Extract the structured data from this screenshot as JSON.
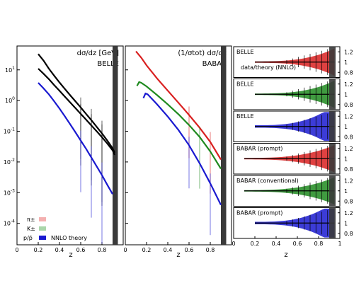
{
  "chart_data": [
    {
      "type": "line",
      "panel": "BELLE cross sections",
      "title": "dσ/dz [GeV]",
      "subtitle": "BELLE",
      "xlabel": "z",
      "ylabel": "",
      "xlim": [
        0,
        1
      ],
      "ylim": [
        2e-05,
        60
      ],
      "yscale": "log",
      "x_ticks": [
        "0",
        "0.2",
        "0.4",
        "0.6",
        "0.8"
      ],
      "y_ticks": [
        "10^-4",
        "10^-3",
        "10^-2",
        "10^-1",
        "10^0",
        "10^1"
      ],
      "legend": [
        "π±",
        "K±",
        "p/p̄",
        "NNLO theory"
      ],
      "legend_position": "bottom-left",
      "series": [
        {
          "name": "π±",
          "color": "#000000",
          "band_color": "#d94040",
          "x": [
            0.2,
            0.25,
            0.3,
            0.35,
            0.4,
            0.45,
            0.5,
            0.55,
            0.6,
            0.65,
            0.7,
            0.75,
            0.8,
            0.85,
            0.9,
            0.92
          ],
          "y": [
            33,
            20,
            11,
            6.5,
            3.9,
            2.4,
            1.5,
            0.95,
            0.6,
            0.37,
            0.23,
            0.14,
            0.085,
            0.05,
            0.028,
            0.02
          ]
        },
        {
          "name": "K±",
          "color": "#000000",
          "band_color": "#3a8a3a",
          "x": [
            0.2,
            0.25,
            0.3,
            0.35,
            0.4,
            0.45,
            0.5,
            0.55,
            0.6,
            0.65,
            0.7,
            0.75,
            0.8,
            0.85,
            0.9,
            0.92
          ],
          "y": [
            11,
            7.5,
            5.0,
            3.2,
            2.1,
            1.35,
            0.88,
            0.57,
            0.37,
            0.24,
            0.155,
            0.1,
            0.064,
            0.04,
            0.024,
            0.017
          ]
        },
        {
          "name": "p/p̄",
          "color": "#1a1ad0",
          "band_color": "#1a1ad0",
          "x": [
            0.2,
            0.25,
            0.3,
            0.35,
            0.4,
            0.45,
            0.5,
            0.55,
            0.6,
            0.65,
            0.7,
            0.75,
            0.8,
            0.85,
            0.9
          ],
          "y": [
            3.8,
            2.5,
            1.6,
            0.95,
            0.55,
            0.31,
            0.17,
            0.093,
            0.05,
            0.027,
            0.014,
            0.0072,
            0.0037,
            0.0018,
            0.0009
          ]
        }
      ]
    },
    {
      "type": "line",
      "panel": "BABAR cross sections",
      "title": "(1/σtot) dσ/dz",
      "subtitle": "BABAR",
      "xlabel": "z",
      "ylabel": "",
      "xlim": [
        0,
        1
      ],
      "ylim": [
        2e-05,
        60
      ],
      "yscale": "log",
      "x_ticks": [
        "0",
        "0.2",
        "0.4",
        "0.6",
        "0.8"
      ],
      "series": [
        {
          "name": "π±",
          "color": "#d92020",
          "x": [
            0.1,
            0.15,
            0.2,
            0.3,
            0.4,
            0.5,
            0.6,
            0.7,
            0.8,
            0.9
          ],
          "y": [
            40,
            25,
            14,
            5.2,
            2.1,
            0.85,
            0.34,
            0.13,
            0.045,
            0.012
          ]
        },
        {
          "name": "K±",
          "color": "#1f8a1f",
          "x": [
            0.11,
            0.13,
            0.15,
            0.2,
            0.3,
            0.4,
            0.5,
            0.6,
            0.7,
            0.8,
            0.9
          ],
          "y": [
            3.0,
            4.0,
            3.8,
            2.9,
            1.5,
            0.75,
            0.36,
            0.16,
            0.065,
            0.022,
            0.006
          ]
        },
        {
          "name": "p/p̄",
          "color": "#1a1ad0",
          "x": [
            0.17,
            0.19,
            0.21,
            0.3,
            0.4,
            0.5,
            0.6,
            0.7,
            0.8,
            0.9
          ],
          "y": [
            1.2,
            1.7,
            1.6,
            0.75,
            0.3,
            0.11,
            0.035,
            0.009,
            0.002,
            0.0004
          ]
        }
      ]
    },
    {
      "type": "line",
      "panel": "data/theory ratios",
      "title": "",
      "xlabel": "z",
      "ylabel": "",
      "xlim": [
        0,
        1
      ],
      "ylim": [
        0.7,
        1.3
      ],
      "x_ticks": [
        "0",
        "0.2",
        "0.4",
        "0.6",
        "0.8",
        "1"
      ],
      "y_ticks": [
        "0.8",
        "1",
        "1.2"
      ],
      "annotation": "data/theory (NNLO)",
      "rows": [
        {
          "label": "BELLE",
          "color": "#d92020",
          "x_range": [
            0.2,
            0.95
          ]
        },
        {
          "label": "BELLE",
          "color": "#1f8a1f",
          "x_range": [
            0.2,
            0.95
          ]
        },
        {
          "label": "BELLE",
          "color": "#1a1ad0",
          "x_range": [
            0.2,
            0.95
          ]
        },
        {
          "label": "BABAR (prompt)",
          "color": "#d92020",
          "x_range": [
            0.1,
            0.95
          ]
        },
        {
          "label": "BABAR (conventional)",
          "color": "#1f8a1f",
          "x_range": [
            0.1,
            0.95
          ]
        },
        {
          "label": "BABAR (prompt)",
          "color": "#1a1ad0",
          "x_range": [
            0.2,
            0.95
          ]
        }
      ]
    }
  ]
}
